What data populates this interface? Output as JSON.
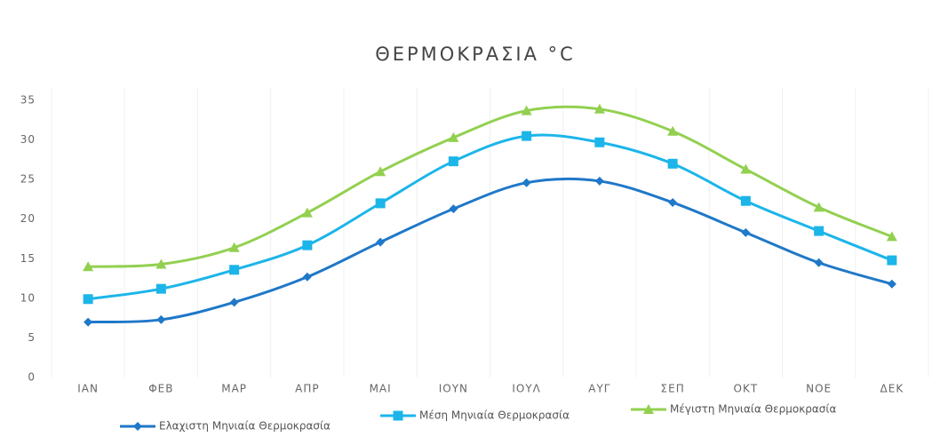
{
  "chart_data": {
    "type": "line",
    "title": "ΘΕΡΜΟΚΡΑΣΙΑ °C",
    "categories": [
      "ΙΑΝ",
      "ΦΕΒ",
      "ΜΑΡ",
      "ΑΠΡ",
      "ΜΑΙ",
      "ΙΟΥΝ",
      "ΙΟΥΛ",
      "ΑΥΓ",
      "ΣΕΠ",
      "ΟΚΤ",
      "ΝΟΕ",
      "ΔΕΚ"
    ],
    "series": [
      {
        "name": "Ελαχιστη Μηνιαία Θερμοκρασία",
        "color": "#1f78c8",
        "marker": "diamond",
        "values": [
          7.0,
          7.3,
          9.5,
          12.7,
          17.1,
          21.3,
          24.6,
          24.8,
          22.1,
          18.3,
          14.5,
          11.8
        ]
      },
      {
        "name": "Μέση Μηνιαία Θερμοκρασία",
        "color": "#1cb5ea",
        "marker": "square",
        "values": [
          9.9,
          11.2,
          13.6,
          16.7,
          22.0,
          27.3,
          30.5,
          29.7,
          27.0,
          22.3,
          18.5,
          14.8
        ]
      },
      {
        "name": "Μέγιστη Μηνιαία Θερμοκρασία",
        "color": "#92d050",
        "marker": "triangle",
        "values": [
          14.0,
          14.3,
          16.4,
          20.8,
          26.0,
          30.3,
          33.7,
          33.9,
          31.1,
          26.3,
          21.5,
          17.8
        ]
      }
    ],
    "ylim": [
      0,
      35
    ],
    "yticks": [
      0,
      5,
      10,
      15,
      20,
      25,
      30,
      35
    ],
    "legend": "bottom"
  }
}
